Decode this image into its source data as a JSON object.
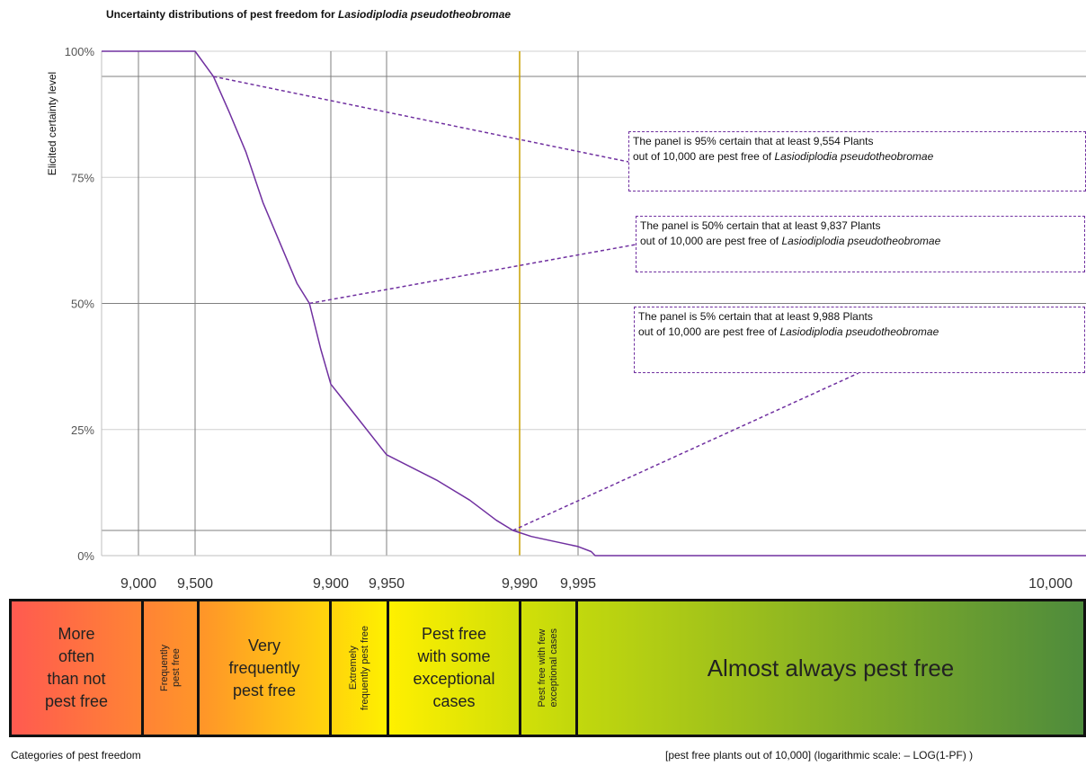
{
  "title_text": "Uncertainty distributions of pest freedom for ",
  "title_species": "Lasiodiplodia pseudotheobromae",
  "chart_data": {
    "type": "line",
    "title": "Uncertainty distributions of pest freedom for Lasiodiplodia pseudotheobromae",
    "ylabel": "Elicited certainty level",
    "xlabel": "[pest free plants out of 10,000] (logarithmic scale: – LOG(1-PF) )",
    "x_scale": "log(1-PF)",
    "y_ticks": [
      "100%",
      "75%",
      "50%",
      "25%",
      "0%"
    ],
    "y_tick_values": [
      100,
      75,
      50,
      25,
      0
    ],
    "x_ticks": [
      {
        "value": 9000,
        "label": "9,000"
      },
      {
        "value": 9500,
        "label": "9,500"
      },
      {
        "value": 9900,
        "label": "9,900"
      },
      {
        "value": 9950,
        "label": "9,950"
      },
      {
        "value": 9990,
        "label": "9,990"
      },
      {
        "value": 9995,
        "label": "9,995"
      },
      {
        "value": 10000,
        "label": "10,000"
      }
    ],
    "reference_lines_y": [
      95,
      50,
      5
    ],
    "highlight_x": 9990,
    "series": [
      {
        "x": [
          8000,
          9000,
          9500,
          9554,
          9600,
          9650,
          9700,
          9750,
          9800,
          9837,
          9870,
          9900,
          9925,
          9950,
          9965,
          9975,
          9983,
          9988,
          9991,
          9993,
          9995,
          9996,
          9996.3,
          9998,
          9999,
          10000
        ],
        "y": [
          100,
          100,
          100,
          95,
          88,
          80,
          70,
          62,
          54,
          50,
          41,
          34,
          27,
          20,
          15,
          11,
          7,
          5,
          3.8,
          2.8,
          1.8,
          0.8,
          0,
          0,
          0,
          0
        ]
      }
    ],
    "annotations": [
      {
        "level": 95,
        "value": 9554,
        "line1": "The panel is 95% certain that at least 9,554 Plants",
        "line2_prefix": "out of 10,000 are pest free of ",
        "line2_species": "Lasiodiplodia pseudotheobromae"
      },
      {
        "level": 50,
        "value": 9837,
        "line1": "The panel is 50% certain that at least 9,837 Plants",
        "line2_prefix": "out of 10,000 are pest free of ",
        "line2_species": "Lasiodiplodia pseudotheobromae"
      },
      {
        "level": 5,
        "value": 9988,
        "line1": "The panel is 5% certain that at least 9,988 Plants",
        "line2_prefix": "out of 10,000 are pest free of ",
        "line2_species": "Lasiodiplodia pseudotheobromae"
      }
    ],
    "colors": {
      "curve": "#7030a0",
      "highlight": "#c8a000",
      "grid": "#7f7f7f",
      "gradient_start": "#ff5a50",
      "gradient_mid": "#ffff00",
      "gradient_end": "#4e8b3c"
    }
  },
  "categories": [
    {
      "key": "more-often",
      "label": "More often than not pest free",
      "lines": [
        "More",
        "often",
        "than not",
        "pest free"
      ],
      "orientation": "horizontal"
    },
    {
      "key": "frequently",
      "label": "Frequently pest free",
      "lines": [
        "Frequently",
        "pest free"
      ],
      "orientation": "vertical"
    },
    {
      "key": "very-frequently",
      "label": "Very frequently pest free",
      "lines": [
        "Very",
        "frequently",
        "pest free"
      ],
      "orientation": "horizontal"
    },
    {
      "key": "extremely-frequently",
      "label": "Extremely frequently pest free",
      "lines": [
        "Extremely",
        "frequently pest free"
      ],
      "orientation": "vertical"
    },
    {
      "key": "some-exceptional",
      "label": "Pest free with some exceptional cases",
      "lines": [
        "Pest free",
        "with some",
        "exceptional",
        "cases"
      ],
      "orientation": "horizontal"
    },
    {
      "key": "few-exceptional",
      "label": "Pest free with few exceptional cases",
      "lines": [
        "Pest free with few",
        "exceptional cases"
      ],
      "orientation": "vertical"
    },
    {
      "key": "almost-always",
      "label": "Almost always pest free",
      "lines": [
        "Almost always pest free"
      ],
      "orientation": "big"
    }
  ],
  "categories_caption": "Categories of pest freedom",
  "xaxis_caption": "[pest free plants out of 10,000] (logarithmic scale: – LOG(1-PF) )"
}
